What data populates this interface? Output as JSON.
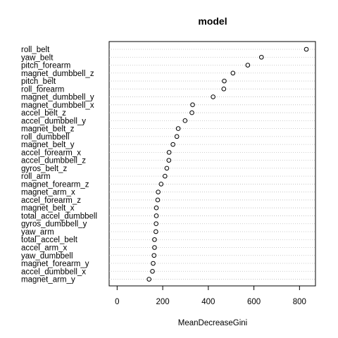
{
  "chart_data": {
    "type": "scatter",
    "title": "model",
    "xlabel": "MeanDecreaseGini",
    "ylabel": "",
    "xlim": [
      -35,
      870
    ],
    "xticks": [
      0,
      200,
      400,
      600,
      800
    ],
    "grid": "dotted-horizontal",
    "categories": [
      "roll_belt",
      "yaw_belt",
      "pitch_forearm",
      "magnet_dumbbell_z",
      "pitch_belt",
      "roll_forearm",
      "magnet_dumbbell_y",
      "magnet_dumbbell_x",
      "accel_belt_z",
      "accel_dumbbell_y",
      "magnet_belt_z",
      "roll_dumbbell",
      "magnet_belt_y",
      "accel_forearm_x",
      "accel_dumbbell_z",
      "gyros_belt_z",
      "roll_arm",
      "magnet_forearm_z",
      "magnet_arm_x",
      "accel_forearm_z",
      "magnet_belt_x",
      "total_accel_dumbbell",
      "gyros_dumbbell_y",
      "yaw_arm",
      "total_accel_belt",
      "accel_arm_x",
      "yaw_dumbbell",
      "magnet_forearm_y",
      "accel_dumbbell_x",
      "magnet_arm_y"
    ],
    "values": [
      830,
      633,
      573,
      508,
      470,
      468,
      421,
      331,
      328,
      298,
      268,
      262,
      245,
      228,
      227,
      218,
      210,
      193,
      180,
      178,
      172,
      172,
      171,
      170,
      164,
      164,
      162,
      158,
      155,
      140
    ]
  }
}
